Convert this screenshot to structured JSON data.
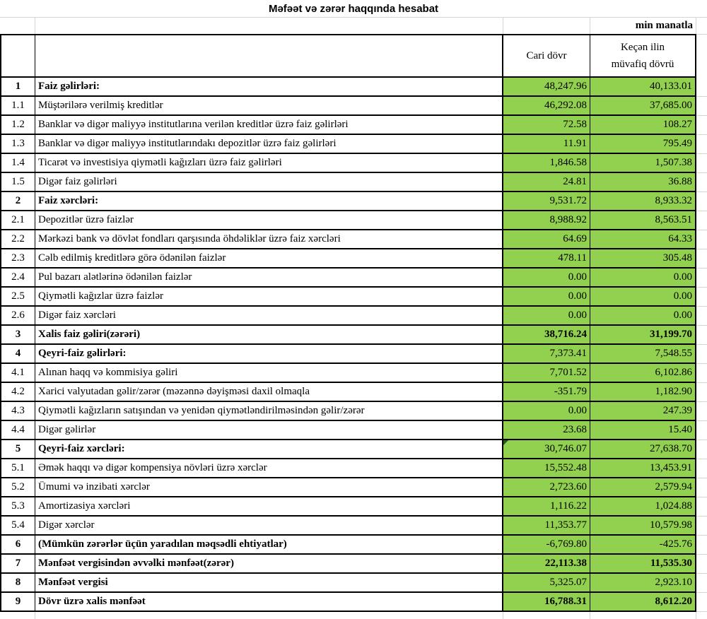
{
  "title": "Məfəət və zərər haqqında hesabat",
  "unit_label": "min manatla",
  "columns": {
    "current": "Cari dövr",
    "previous_line1": "Keçən ilin",
    "previous_line2": "müvafiq dövrü"
  },
  "colors": {
    "value_cell_bg": "#92D050",
    "border": "#000000",
    "gridline": "#D4D4D4",
    "note_marker": "#1F5C1F"
  },
  "rows": [
    {
      "no": "1",
      "label": "Faiz gəlirləri:",
      "current": "48,247.96",
      "previous": "40,133.01",
      "section": true,
      "bold_values": false,
      "note": false
    },
    {
      "no": "1.1",
      "label": "Müştərilərə verilmiş kreditlər",
      "current": "46,292.08",
      "previous": "37,685.00",
      "section": false,
      "bold_values": false,
      "note": false
    },
    {
      "no": "1.2",
      "label": "Banklar və digər maliyyə institutlarına verilən kreditlər üzrə faiz gəlirləri",
      "current": "72.58",
      "previous": "108.27",
      "section": false,
      "bold_values": false,
      "note": false
    },
    {
      "no": "1.3",
      "label": "Banklar və digər maliyyə institutlarındakı depozitlər üzrə faiz gəlirləri",
      "current": "11.91",
      "previous": "795.49",
      "section": false,
      "bold_values": false,
      "note": false
    },
    {
      "no": "1.4",
      "label": "Ticarət və investisiya qiymətli kağızları üzrə faiz gəlirləri",
      "current": "1,846.58",
      "previous": "1,507.38",
      "section": false,
      "bold_values": false,
      "note": false
    },
    {
      "no": "1.5",
      "label": "Digər faiz gəlirləri",
      "current": "24.81",
      "previous": "36.88",
      "section": false,
      "bold_values": false,
      "note": false
    },
    {
      "no": "2",
      "label": "Faiz xərcləri:",
      "current": "9,531.72",
      "previous": "8,933.32",
      "section": true,
      "bold_values": false,
      "note": false
    },
    {
      "no": "2.1",
      "label": "Depozitlər üzrə faizlər",
      "current": "8,988.92",
      "previous": "8,563.51",
      "section": false,
      "bold_values": false,
      "note": false
    },
    {
      "no": "2.2",
      "label": "Mərkəzi bank və dövlət fondları qarşısında öhdəliklər üzrə faiz xərcləri",
      "current": "64.69",
      "previous": "64.33",
      "section": false,
      "bold_values": false,
      "note": false
    },
    {
      "no": "2.3",
      "label": "Cəlb edilmiş kreditlərə görə ödənilən faizlər",
      "current": "478.11",
      "previous": "305.48",
      "section": false,
      "bold_values": false,
      "note": false
    },
    {
      "no": "2.4",
      "label": "Pul bazarı alətlərinə ödənilən faizlər",
      "current": "0.00",
      "previous": "0.00",
      "section": false,
      "bold_values": false,
      "note": false
    },
    {
      "no": "2.5",
      "label": "Qiymətli kağızlar üzrə faizlər",
      "current": "0.00",
      "previous": "0.00",
      "section": false,
      "bold_values": false,
      "note": false
    },
    {
      "no": "2.6",
      "label": "Digər faiz xərcləri",
      "current": "0.00",
      "previous": "0.00",
      "section": false,
      "bold_values": false,
      "note": false
    },
    {
      "no": "3",
      "label": "Xalis faiz gəliri(zərəri)",
      "current": "38,716.24",
      "previous": "31,199.70",
      "section": true,
      "bold_values": true,
      "note": false
    },
    {
      "no": "4",
      "label": "Qeyri-faiz gəlirləri:",
      "current": "7,373.41",
      "previous": "7,548.55",
      "section": true,
      "bold_values": false,
      "note": false
    },
    {
      "no": "4.1",
      "label": "Alınan haqq və kommisiya gəliri",
      "current": "7,701.52",
      "previous": "6,102.86",
      "section": false,
      "bold_values": false,
      "note": false
    },
    {
      "no": "4.2",
      "label": "Xarici valyutadan gəlir/zərər (məzənnə dəyişməsi daxil olmaqla",
      "current": "-351.79",
      "previous": "1,182.90",
      "section": false,
      "bold_values": false,
      "note": false
    },
    {
      "no": "4.3",
      "label": "Qiymətli kağızların satışından və yenidən qiymətləndirilməsindən gəlir/zərər",
      "current": "0.00",
      "previous": "247.39",
      "section": false,
      "bold_values": false,
      "note": false
    },
    {
      "no": "4.4",
      "label": "Digər gəlirlər",
      "current": "23.68",
      "previous": "15.40",
      "section": false,
      "bold_values": false,
      "note": false
    },
    {
      "no": "5",
      "label": "Qeyri-faiz xərcləri:",
      "current": "30,746.07",
      "previous": "27,638.70",
      "section": true,
      "bold_values": false,
      "note": true
    },
    {
      "no": "5.1",
      "label": "Əmək haqqı və digər kompensiya növləri üzrə xərclər",
      "current": "15,552.48",
      "previous": "13,453.91",
      "section": false,
      "bold_values": false,
      "note": false
    },
    {
      "no": "5.2",
      "label": "Ümumi və inzibati xərclər",
      "current": "2,723.60",
      "previous": "2,579.94",
      "section": false,
      "bold_values": false,
      "note": false
    },
    {
      "no": "5.3",
      "label": "Amortizasiya xərcləri",
      "current": "1,116.22",
      "previous": "1,024.88",
      "section": false,
      "bold_values": false,
      "note": false
    },
    {
      "no": "5.4",
      "label": "Digər xərclər",
      "current": "11,353.77",
      "previous": "10,579.98",
      "section": false,
      "bold_values": false,
      "note": false
    },
    {
      "no": "6",
      "label": "(Mümkün zərərlər üçün yaradılan məqsədli ehtiyatlar)",
      "current": "-6,769.80",
      "previous": "-425.76",
      "section": true,
      "bold_values": false,
      "note": false
    },
    {
      "no": "7",
      "label": "Mənfəət vergisindən əvvəlki mənfəət(zərər)",
      "current": "22,113.38",
      "previous": "11,535.30",
      "section": true,
      "bold_values": true,
      "note": false
    },
    {
      "no": "8",
      "label": "Mənfəət vergisi",
      "current": "5,325.07",
      "previous": "2,923.10",
      "section": true,
      "bold_values": false,
      "note": false
    },
    {
      "no": "9",
      "label": "Dövr üzrə xalis mənfəət",
      "current": "16,788.31",
      "previous": "8,612.20",
      "section": true,
      "bold_values": true,
      "note": false
    }
  ]
}
